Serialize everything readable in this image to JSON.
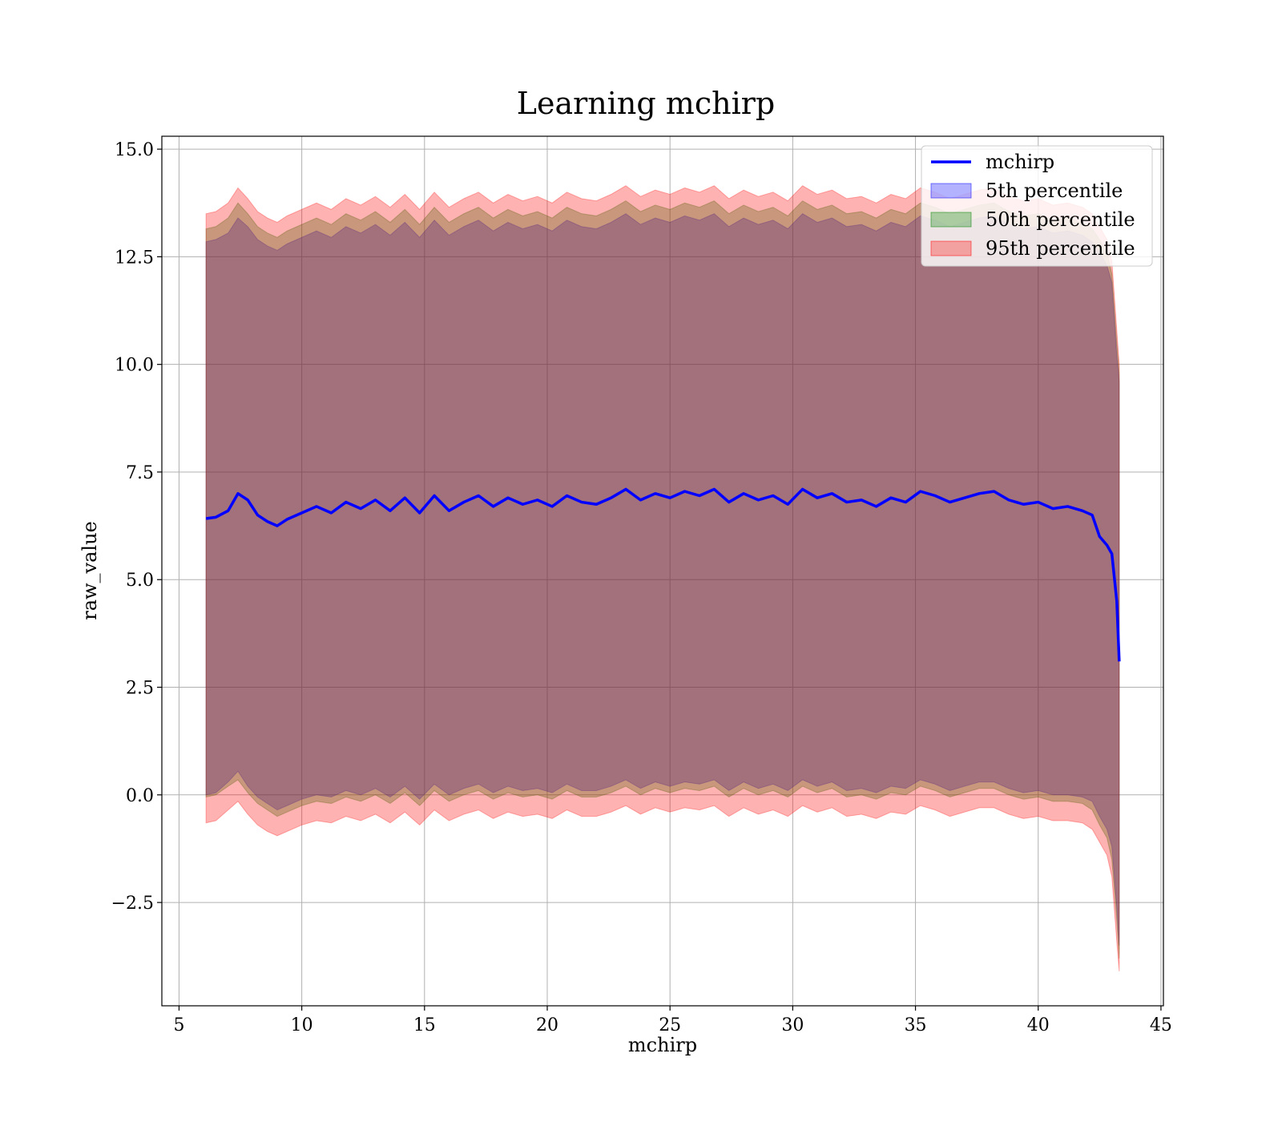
{
  "chart_data": {
    "type": "area",
    "title": "Learning mchirp",
    "xlabel": "mchirp",
    "ylabel": "raw_value",
    "xlim": [
      4.3,
      45.1
    ],
    "ylim": [
      -4.9,
      15.3
    ],
    "xticks": [
      5,
      10,
      15,
      20,
      25,
      30,
      35,
      40,
      45
    ],
    "yticks": [
      -2.5,
      0.0,
      2.5,
      5.0,
      7.5,
      10.0,
      12.5,
      15.0
    ],
    "xtick_labels": [
      "5",
      "10",
      "15",
      "20",
      "25",
      "30",
      "35",
      "40",
      "45"
    ],
    "ytick_labels": [
      "−2.5",
      "0.0",
      "2.5",
      "5.0",
      "7.5",
      "10.0",
      "12.5",
      "15.0"
    ],
    "grid": true,
    "legend_position": "top-right",
    "x": [
      6.1,
      6.5,
      7.0,
      7.4,
      7.8,
      8.2,
      8.6,
      9.0,
      9.4,
      10.0,
      10.6,
      11.2,
      11.8,
      12.4,
      13.0,
      13.6,
      14.2,
      14.8,
      15.4,
      16.0,
      16.6,
      17.2,
      17.8,
      18.4,
      19.0,
      19.6,
      20.2,
      20.8,
      21.4,
      22.0,
      22.6,
      23.2,
      23.8,
      24.4,
      25.0,
      25.6,
      26.2,
      26.8,
      27.4,
      28.0,
      28.6,
      29.2,
      29.8,
      30.4,
      31.0,
      31.6,
      32.2,
      32.8,
      33.4,
      34.0,
      34.6,
      35.2,
      35.8,
      36.4,
      37.0,
      37.6,
      38.2,
      38.8,
      39.4,
      40.0,
      40.6,
      41.2,
      41.8,
      42.2,
      42.5,
      42.8,
      43.0,
      43.2,
      43.3
    ],
    "series": [
      {
        "name": "mchirp",
        "color": "#0000ff",
        "type": "line",
        "values": [
          6.42,
          6.45,
          6.6,
          7.0,
          6.85,
          6.5,
          6.35,
          6.25,
          6.4,
          6.55,
          6.7,
          6.55,
          6.8,
          6.65,
          6.85,
          6.6,
          6.9,
          6.55,
          6.95,
          6.6,
          6.8,
          6.95,
          6.7,
          6.9,
          6.75,
          6.85,
          6.7,
          6.95,
          6.8,
          6.75,
          6.9,
          7.1,
          6.85,
          7.0,
          6.9,
          7.05,
          6.95,
          7.1,
          6.8,
          7.0,
          6.85,
          6.95,
          6.75,
          7.1,
          6.9,
          7.0,
          6.8,
          6.85,
          6.7,
          6.9,
          6.8,
          7.05,
          6.95,
          6.8,
          6.9,
          7.0,
          7.05,
          6.85,
          6.75,
          6.8,
          6.65,
          6.7,
          6.6,
          6.5,
          6.0,
          5.8,
          5.6,
          4.5,
          3.1
        ]
      },
      {
        "name": "5th percentile",
        "color": "#0000ff",
        "opacity": 0.3,
        "type": "band",
        "lower": [
          0.0,
          0.05,
          0.3,
          0.55,
          0.2,
          -0.05,
          -0.2,
          -0.35,
          -0.25,
          -0.1,
          0.0,
          -0.05,
          0.1,
          0.0,
          0.15,
          -0.05,
          0.2,
          -0.1,
          0.25,
          0.0,
          0.15,
          0.25,
          0.05,
          0.2,
          0.1,
          0.15,
          0.05,
          0.25,
          0.1,
          0.1,
          0.2,
          0.35,
          0.15,
          0.3,
          0.2,
          0.3,
          0.25,
          0.35,
          0.1,
          0.3,
          0.15,
          0.25,
          0.1,
          0.35,
          0.2,
          0.3,
          0.1,
          0.15,
          0.05,
          0.2,
          0.15,
          0.35,
          0.25,
          0.1,
          0.2,
          0.3,
          0.3,
          0.15,
          0.05,
          0.1,
          0.0,
          0.0,
          -0.05,
          -0.15,
          -0.5,
          -0.8,
          -1.2,
          -2.6,
          -3.5
        ],
        "upper": [
          12.85,
          12.9,
          13.05,
          13.4,
          13.2,
          12.9,
          12.75,
          12.65,
          12.8,
          12.95,
          13.1,
          12.95,
          13.2,
          13.05,
          13.25,
          13.0,
          13.3,
          12.95,
          13.35,
          13.0,
          13.2,
          13.35,
          13.1,
          13.3,
          13.15,
          13.25,
          13.1,
          13.35,
          13.2,
          13.15,
          13.3,
          13.5,
          13.25,
          13.4,
          13.3,
          13.45,
          13.35,
          13.5,
          13.2,
          13.4,
          13.25,
          13.35,
          13.15,
          13.5,
          13.3,
          13.4,
          13.2,
          13.25,
          13.1,
          13.3,
          13.2,
          13.45,
          13.35,
          13.2,
          13.3,
          13.4,
          13.45,
          13.25,
          13.15,
          13.2,
          13.05,
          13.1,
          13.0,
          12.85,
          12.6,
          12.3,
          11.9,
          10.2,
          9.6
        ]
      },
      {
        "name": "50th percentile",
        "color": "#008000",
        "opacity": 0.3,
        "type": "band",
        "lower": [
          -0.05,
          0.0,
          0.2,
          0.35,
          0.05,
          -0.2,
          -0.35,
          -0.5,
          -0.4,
          -0.25,
          -0.15,
          -0.2,
          -0.05,
          -0.15,
          0.0,
          -0.2,
          0.05,
          -0.25,
          0.1,
          -0.15,
          0.0,
          0.1,
          -0.1,
          0.05,
          -0.05,
          0.0,
          -0.1,
          0.1,
          -0.05,
          -0.05,
          0.05,
          0.2,
          0.0,
          0.15,
          0.05,
          0.15,
          0.1,
          0.2,
          -0.05,
          0.15,
          0.0,
          0.1,
          -0.05,
          0.2,
          0.05,
          0.15,
          -0.05,
          0.0,
          -0.1,
          0.05,
          0.0,
          0.2,
          0.1,
          -0.05,
          0.05,
          0.15,
          0.15,
          0.0,
          -0.1,
          -0.05,
          -0.15,
          -0.15,
          -0.2,
          -0.35,
          -0.7,
          -1.0,
          -1.5,
          -2.9,
          -3.8
        ],
        "upper": [
          13.15,
          13.2,
          13.4,
          13.75,
          13.5,
          13.2,
          13.05,
          12.95,
          13.1,
          13.25,
          13.4,
          13.25,
          13.5,
          13.35,
          13.55,
          13.3,
          13.6,
          13.25,
          13.65,
          13.3,
          13.5,
          13.65,
          13.4,
          13.6,
          13.45,
          13.55,
          13.4,
          13.65,
          13.5,
          13.45,
          13.6,
          13.8,
          13.55,
          13.7,
          13.6,
          13.75,
          13.65,
          13.8,
          13.5,
          13.7,
          13.55,
          13.65,
          13.45,
          13.8,
          13.6,
          13.7,
          13.5,
          13.55,
          13.4,
          13.6,
          13.5,
          13.75,
          13.65,
          13.5,
          13.6,
          13.7,
          13.75,
          13.55,
          13.45,
          13.5,
          13.35,
          13.4,
          13.3,
          13.15,
          12.9,
          12.6,
          12.1,
          10.5,
          9.8
        ]
      },
      {
        "name": "95th percentile",
        "color": "#ff0000",
        "opacity": 0.3,
        "type": "band",
        "lower": [
          -0.65,
          -0.6,
          -0.35,
          -0.15,
          -0.45,
          -0.7,
          -0.85,
          -0.95,
          -0.85,
          -0.7,
          -0.6,
          -0.65,
          -0.5,
          -0.6,
          -0.45,
          -0.65,
          -0.4,
          -0.7,
          -0.35,
          -0.6,
          -0.45,
          -0.35,
          -0.55,
          -0.4,
          -0.5,
          -0.45,
          -0.55,
          -0.35,
          -0.5,
          -0.5,
          -0.4,
          -0.25,
          -0.45,
          -0.3,
          -0.4,
          -0.3,
          -0.35,
          -0.25,
          -0.5,
          -0.3,
          -0.45,
          -0.35,
          -0.5,
          -0.25,
          -0.4,
          -0.3,
          -0.5,
          -0.45,
          -0.55,
          -0.4,
          -0.45,
          -0.25,
          -0.35,
          -0.5,
          -0.4,
          -0.3,
          -0.3,
          -0.45,
          -0.55,
          -0.5,
          -0.6,
          -0.6,
          -0.65,
          -0.8,
          -1.1,
          -1.4,
          -1.9,
          -3.4,
          -4.1
        ],
        "upper": [
          13.5,
          13.55,
          13.75,
          14.1,
          13.85,
          13.55,
          13.4,
          13.3,
          13.45,
          13.6,
          13.75,
          13.6,
          13.85,
          13.7,
          13.9,
          13.65,
          13.95,
          13.6,
          14.0,
          13.65,
          13.85,
          14.0,
          13.75,
          13.95,
          13.8,
          13.9,
          13.75,
          14.0,
          13.85,
          13.8,
          13.95,
          14.15,
          13.9,
          14.05,
          13.95,
          14.1,
          14.0,
          14.15,
          13.85,
          14.05,
          13.9,
          14.0,
          13.8,
          14.15,
          13.95,
          14.05,
          13.85,
          13.9,
          13.75,
          13.95,
          13.85,
          14.1,
          14.0,
          13.85,
          13.95,
          14.05,
          14.1,
          13.9,
          13.8,
          13.85,
          13.7,
          13.75,
          13.65,
          13.5,
          13.2,
          12.9,
          12.4,
          10.8,
          10.0
        ]
      }
    ],
    "legend_order": [
      "mchirp",
      "5th percentile",
      "50th percentile",
      "95th percentile"
    ]
  }
}
